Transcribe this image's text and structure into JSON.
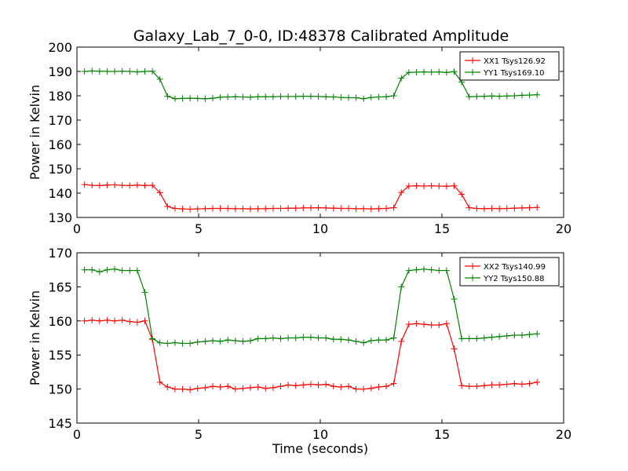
{
  "figure": {
    "title": "Galaxy_Lab_7_0-0, ID:48378 Calibrated Amplitude",
    "background": "#ffffff"
  },
  "chart_data": [
    {
      "type": "line",
      "title": "Galaxy_Lab_7_0-0, ID:48378 Calibrated Amplitude",
      "xlabel": "",
      "ylabel": "Power in Kelvin",
      "xlim": [
        0,
        20
      ],
      "ylim": [
        130,
        200
      ],
      "xticks": [
        0,
        5,
        10,
        15,
        20
      ],
      "yticks": [
        130,
        140,
        150,
        160,
        170,
        180,
        190,
        200
      ],
      "grid": false,
      "legend_position": "top-right",
      "x": [
        0.31,
        0.62,
        0.93,
        1.24,
        1.55,
        1.86,
        2.17,
        2.48,
        2.79,
        3.1,
        3.41,
        3.72,
        4.03,
        4.34,
        4.65,
        4.96,
        5.27,
        5.58,
        5.89,
        6.2,
        6.51,
        6.82,
        7.13,
        7.44,
        7.75,
        8.06,
        8.37,
        8.68,
        8.99,
        9.3,
        9.61,
        9.92,
        10.23,
        10.54,
        10.85,
        11.16,
        11.47,
        11.78,
        12.09,
        12.4,
        12.71,
        13.02,
        13.33,
        13.64,
        13.95,
        14.26,
        14.57,
        14.88,
        15.19,
        15.5,
        15.81,
        16.12,
        16.43,
        16.74,
        17.05,
        17.36,
        17.67,
        17.98,
        18.29,
        18.6,
        18.91
      ],
      "series": [
        {
          "name": "XX1 Tsys126.92",
          "color": "#ff0000",
          "values": [
            143.5,
            143.2,
            143.1,
            143.3,
            143.4,
            143.2,
            143.1,
            143.3,
            143.1,
            143.2,
            140.2,
            134.5,
            133.7,
            133.5,
            133.4,
            133.5,
            133.6,
            133.7,
            133.7,
            133.7,
            133.6,
            133.6,
            133.5,
            133.6,
            133.6,
            133.7,
            133.7,
            133.8,
            133.8,
            133.9,
            133.9,
            134.0,
            133.9,
            133.8,
            133.7,
            133.7,
            133.6,
            133.6,
            133.5,
            133.6,
            133.7,
            134.0,
            140.3,
            142.9,
            143.0,
            142.9,
            143.0,
            142.9,
            142.8,
            143.0,
            139.5,
            134.0,
            133.7,
            133.6,
            133.7,
            133.6,
            133.7,
            133.8,
            133.9,
            134.0,
            134.1
          ]
        },
        {
          "name": "YY1 Tsys169.10",
          "color": "#008000",
          "values": [
            190.0,
            190.2,
            190.1,
            190.0,
            190.0,
            190.1,
            190.0,
            189.8,
            190.0,
            190.1,
            186.8,
            179.8,
            178.8,
            178.9,
            179.0,
            178.9,
            178.8,
            179.0,
            179.4,
            179.5,
            179.6,
            179.5,
            179.4,
            179.6,
            179.6,
            179.6,
            179.7,
            179.7,
            179.7,
            179.8,
            179.8,
            179.7,
            179.6,
            179.5,
            179.3,
            179.2,
            179.2,
            178.8,
            179.3,
            179.5,
            179.6,
            180.0,
            187.2,
            189.6,
            189.7,
            189.8,
            189.7,
            189.8,
            189.6,
            189.9,
            185.6,
            179.6,
            179.7,
            179.8,
            179.9,
            179.8,
            179.9,
            180.0,
            180.2,
            180.3,
            180.4
          ]
        }
      ]
    },
    {
      "type": "line",
      "title": "",
      "xlabel": "Time (seconds)",
      "ylabel": "Power in Kelvin",
      "xlim": [
        0,
        20
      ],
      "ylim": [
        145,
        170
      ],
      "xticks": [
        0,
        5,
        10,
        15,
        20
      ],
      "yticks": [
        145,
        150,
        155,
        160,
        165,
        170
      ],
      "grid": false,
      "legend_position": "top-right",
      "x": [
        0.31,
        0.62,
        0.93,
        1.24,
        1.55,
        1.86,
        2.17,
        2.48,
        2.79,
        3.1,
        3.41,
        3.72,
        4.03,
        4.34,
        4.65,
        4.96,
        5.27,
        5.58,
        5.89,
        6.2,
        6.51,
        6.82,
        7.13,
        7.44,
        7.75,
        8.06,
        8.37,
        8.68,
        8.99,
        9.3,
        9.61,
        9.92,
        10.23,
        10.54,
        10.85,
        11.16,
        11.47,
        11.78,
        12.09,
        12.4,
        12.71,
        13.02,
        13.33,
        13.64,
        13.95,
        14.26,
        14.57,
        14.88,
        15.19,
        15.5,
        15.81,
        16.12,
        16.43,
        16.74,
        17.05,
        17.36,
        17.67,
        17.98,
        18.29,
        18.6,
        18.91
      ],
      "series": [
        {
          "name": "XX2 Tsys140.99",
          "color": "#ff0000",
          "values": [
            160.0,
            160.1,
            160.0,
            160.1,
            160.0,
            160.1,
            159.9,
            159.8,
            160.0,
            157.3,
            151.0,
            150.3,
            150.0,
            150.0,
            149.9,
            150.1,
            150.2,
            150.4,
            150.3,
            150.4,
            150.0,
            150.1,
            150.2,
            150.3,
            150.1,
            150.2,
            150.4,
            150.6,
            150.5,
            150.6,
            150.7,
            150.6,
            150.7,
            150.4,
            150.3,
            150.4,
            150.0,
            150.0,
            150.1,
            150.3,
            150.4,
            150.8,
            157.0,
            159.5,
            159.6,
            159.5,
            159.4,
            159.4,
            159.6,
            155.9,
            150.5,
            150.4,
            150.4,
            150.5,
            150.6,
            150.6,
            150.7,
            150.8,
            150.7,
            150.8,
            151.0
          ]
        },
        {
          "name": "YY2 Tsys150.88",
          "color": "#008000",
          "values": [
            167.5,
            167.5,
            167.2,
            167.5,
            167.6,
            167.4,
            167.4,
            167.4,
            164.2,
            157.4,
            156.8,
            156.7,
            156.8,
            156.7,
            156.7,
            156.9,
            157.0,
            157.1,
            157.0,
            157.2,
            157.1,
            157.0,
            157.1,
            157.4,
            157.4,
            157.5,
            157.4,
            157.5,
            157.5,
            157.6,
            157.6,
            157.5,
            157.5,
            157.3,
            157.3,
            157.2,
            157.0,
            156.8,
            157.1,
            157.2,
            157.2,
            157.5,
            165.0,
            167.4,
            167.5,
            167.6,
            167.5,
            167.4,
            167.4,
            163.2,
            157.4,
            157.4,
            157.4,
            157.5,
            157.6,
            157.7,
            157.8,
            157.9,
            157.9,
            158.0,
            158.1
          ]
        }
      ]
    }
  ]
}
